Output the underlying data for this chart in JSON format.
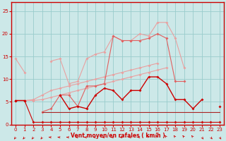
{
  "x": [
    0,
    1,
    2,
    3,
    4,
    5,
    6,
    7,
    8,
    9,
    10,
    11,
    12,
    13,
    14,
    15,
    16,
    17,
    18,
    19,
    20,
    21,
    22,
    23
  ],
  "line_top_light": [
    14.5,
    11.5,
    null,
    null,
    14.0,
    14.5,
    9.0,
    9.5,
    14.5,
    15.5,
    16.0,
    19.5,
    18.5,
    18.5,
    20.0,
    19.5,
    22.5,
    22.5,
    19.0,
    12.5,
    null,
    null,
    null,
    null
  ],
  "line_diag_light_upper": [
    5.3,
    5.3,
    5.5,
    6.5,
    7.5,
    8.0,
    8.5,
    9.0,
    9.5,
    10.0,
    10.5,
    11.0,
    11.5,
    12.0,
    12.5,
    13.0,
    13.5,
    null,
    null,
    null,
    null,
    null,
    null,
    null
  ],
  "line_diag_light_lower": [
    5.3,
    5.3,
    5.3,
    5.5,
    6.0,
    6.5,
    7.0,
    7.5,
    8.0,
    8.5,
    9.0,
    9.5,
    10.0,
    10.5,
    11.0,
    11.5,
    12.0,
    12.5,
    null,
    null,
    null,
    null,
    null,
    null
  ],
  "line_mid_pink": [
    null,
    null,
    null,
    2.8,
    3.5,
    6.5,
    6.5,
    4.0,
    8.5,
    8.5,
    9.0,
    19.5,
    18.5,
    18.5,
    18.5,
    19.0,
    20.0,
    19.0,
    9.5,
    9.5,
    null,
    null,
    null,
    null
  ],
  "line_dark_ragged": [
    5.3,
    5.3,
    null,
    null,
    null,
    6.5,
    3.5,
    4.0,
    3.5,
    6.5,
    8.0,
    7.5,
    5.5,
    7.5,
    7.5,
    10.5,
    10.5,
    9.0,
    5.5,
    5.5,
    3.5,
    5.5,
    null,
    4.0
  ],
  "line_flat_dark1": [
    5.3,
    5.3,
    0.5,
    0.5,
    0.5,
    0.5,
    0.5,
    0.5,
    0.5,
    0.5,
    0.5,
    0.5,
    0.5,
    0.5,
    0.5,
    0.5,
    0.5,
    0.5,
    0.5,
    0.5,
    0.5,
    0.5,
    0.5,
    0.5
  ],
  "line_flat_dark2": [
    null,
    null,
    null,
    2.8,
    2.8,
    2.8,
    2.8,
    2.8,
    2.8,
    2.8,
    2.8,
    2.8,
    2.8,
    2.8,
    2.8,
    2.8,
    2.8,
    2.8,
    2.8,
    2.8,
    2.8,
    2.8,
    2.8,
    2.8
  ],
  "xlim": [
    -0.5,
    23.5
  ],
  "ylim": [
    0,
    27
  ],
  "yticks": [
    0,
    5,
    10,
    15,
    20,
    25
  ],
  "xticks": [
    0,
    1,
    2,
    3,
    4,
    5,
    6,
    7,
    8,
    9,
    10,
    11,
    12,
    13,
    14,
    15,
    16,
    17,
    18,
    19,
    20,
    21,
    22,
    23
  ],
  "xlabel": "Vent moyen/en rafales ( km/h )",
  "bg_color": "#cce8e8",
  "grid_color": "#99cccc",
  "axis_color": "#cc0000",
  "color_dark": "#cc0000",
  "color_medium": "#e06060",
  "color_light": "#e8a0a0",
  "arrow_angles_deg": [
    225,
    225,
    225,
    225,
    270,
    270,
    270,
    270,
    270,
    270,
    270,
    270,
    270,
    270,
    270,
    315,
    315,
    315,
    315,
    315,
    315,
    135,
    135,
    135
  ]
}
